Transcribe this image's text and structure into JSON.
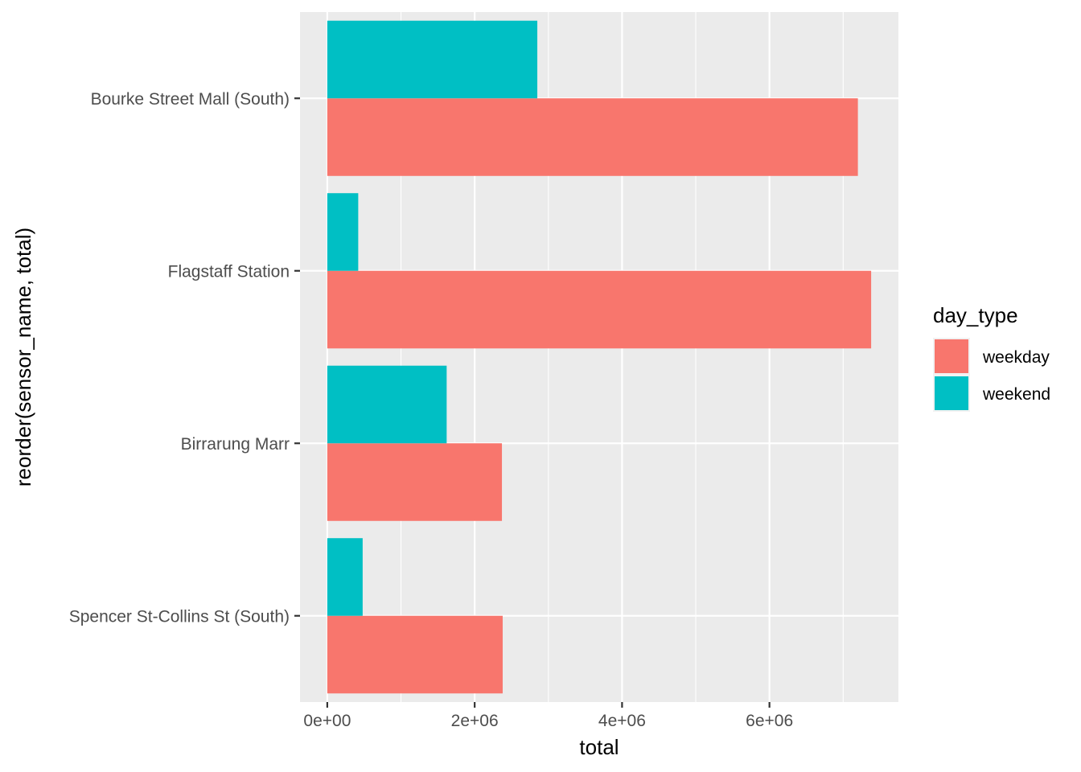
{
  "chart_data": {
    "type": "bar",
    "orientation": "horizontal",
    "categories": [
      "Bourke Street Mall (South)",
      "Flagstaff Station",
      "Birrarung Marr",
      "Spencer St-Collins St (South)"
    ],
    "series": [
      {
        "name": "weekday",
        "color": "#F8766D",
        "values": [
          7200000,
          7380000,
          2370000,
          2380000
        ]
      },
      {
        "name": "weekend",
        "color": "#00BFC4",
        "values": [
          2850000,
          420000,
          1620000,
          480000
        ]
      }
    ],
    "xlabel": "total",
    "ylabel": "reorder(sensor_name, total)",
    "xlim": [
      -370000,
      7750000
    ],
    "x_ticks": [
      0,
      2000000,
      4000000,
      6000000
    ],
    "x_tick_labels": [
      "0e+00",
      "2e+06",
      "4e+06",
      "6e+06"
    ],
    "legend": {
      "title": "day_type",
      "position": "right"
    },
    "grid": true,
    "panel_background": "#EBEBEB",
    "grid_color": "#FFFFFF"
  }
}
